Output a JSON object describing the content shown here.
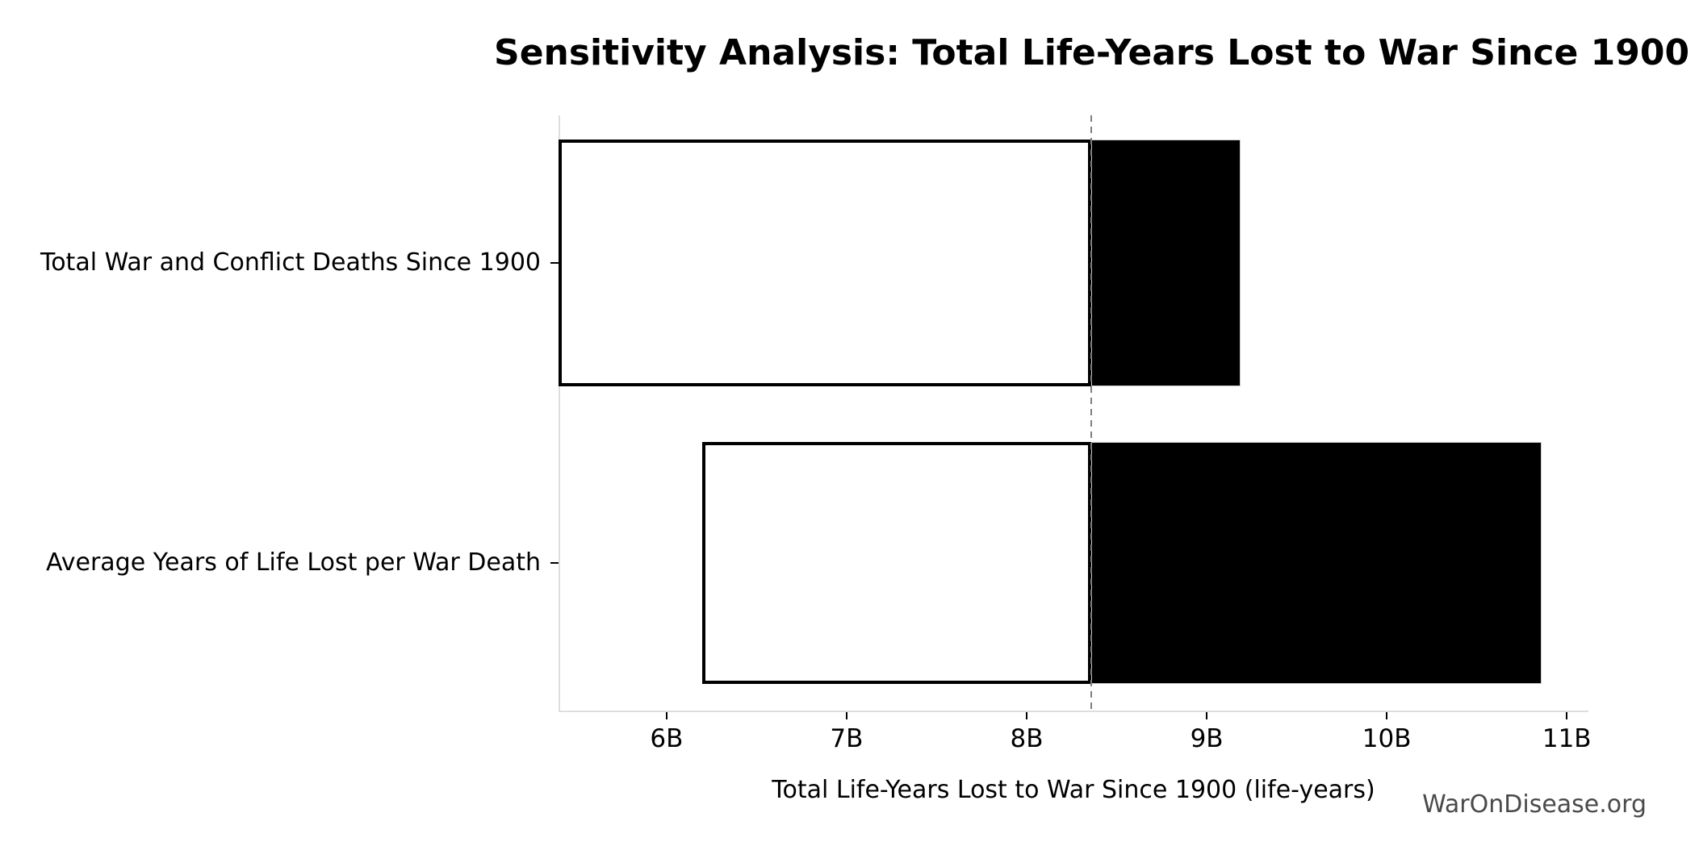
{
  "title": "Sensitivity Analysis: Total Life-Years Lost to War Since 1900",
  "watermark": "WarOnDisease.org",
  "chart_data": {
    "type": "bar",
    "subtype": "tornado-sensitivity-horizontal",
    "title": "Sensitivity Analysis: Total Life-Years Lost to War Since 1900",
    "xlabel": "Total Life-Years Lost to War Since 1900 (life-years)",
    "ylabel": "",
    "unit": "life-years (billions)",
    "xlim_billions": [
      5.4,
      11.12
    ],
    "grid": false,
    "legend": false,
    "base_value_billions": 8.36,
    "baseline_style": "dashed-vertical-gray",
    "x_ticks": [
      {
        "value": 6,
        "label": "6B"
      },
      {
        "value": 7,
        "label": "7B"
      },
      {
        "value": 8,
        "label": "8B"
      },
      {
        "value": 9,
        "label": "9B"
      },
      {
        "value": 10,
        "label": "10B"
      },
      {
        "value": 11,
        "label": "11B"
      }
    ],
    "bars": [
      {
        "label": "Total War and Conflict Deaths Since 1900",
        "low_billions": 5.4,
        "high_billions": 9.19
      },
      {
        "label": "Average Years of Life Lost per War Death",
        "low_billions": 6.2,
        "high_billions": 10.86
      }
    ],
    "colors": {
      "below_base_fill": "#ffffff",
      "below_base_border": "#000000",
      "above_base_fill": "#000000",
      "above_base_border": "#cccccc",
      "baseline": "#7f7f7f",
      "spine": "#dedede",
      "text": "#000000",
      "watermark": "#4a4a4a"
    }
  }
}
